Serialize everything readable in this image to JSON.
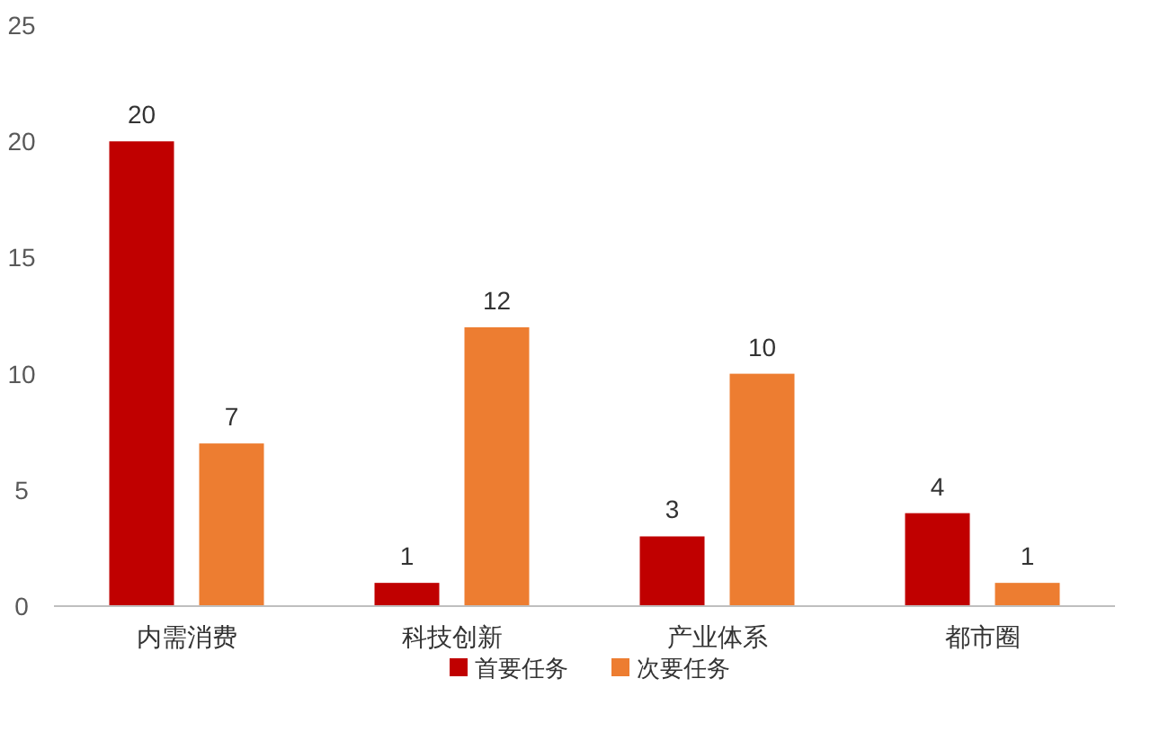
{
  "chart_data": {
    "type": "bar",
    "categories": [
      "内需消费",
      "科技创新",
      "产业体系",
      "都市圈"
    ],
    "series": [
      {
        "name": "首要任务",
        "color": "#c00000",
        "values": [
          20,
          1,
          3,
          4
        ]
      },
      {
        "name": "次要任务",
        "color": "#ed7d31",
        "values": [
          7,
          12,
          10,
          1
        ]
      }
    ],
    "ylim": [
      0,
      25
    ],
    "yticks": [
      0,
      5,
      10,
      15,
      20,
      25
    ],
    "grid": false,
    "legend": "bottom",
    "data_labels": true
  }
}
